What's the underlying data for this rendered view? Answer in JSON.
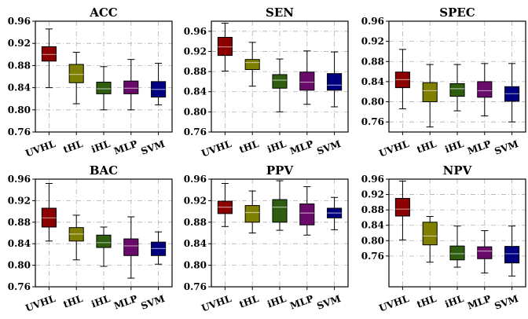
{
  "chart_data": [
    {
      "type": "box",
      "title": "ACC",
      "categories": [
        "UVHL",
        "tHL",
        "iHL",
        "MLP",
        "SVM"
      ],
      "ylim": [
        0.76,
        0.96
      ],
      "yticks": [
        "0.76",
        "0.80",
        "0.84",
        "0.88",
        "0.92",
        "0.96"
      ],
      "grid": true,
      "boxes": [
        {
          "name": "UVHL",
          "whislo": 0.84,
          "q1": 0.888,
          "med": 0.9,
          "q3": 0.914,
          "whishi": 0.946,
          "color": "#8b0000"
        },
        {
          "name": "tHL",
          "whislo": 0.811,
          "q1": 0.849,
          "med": 0.864,
          "q3": 0.882,
          "whishi": 0.904,
          "color": "#808000"
        },
        {
          "name": "iHL",
          "whislo": 0.8,
          "q1": 0.829,
          "med": 0.838,
          "q3": 0.85,
          "whishi": 0.878,
          "color": "#2e5e0e"
        },
        {
          "name": "MLP",
          "whislo": 0.8,
          "q1": 0.829,
          "med": 0.839,
          "q3": 0.852,
          "whishi": 0.891,
          "color": "#6a0a6a"
        },
        {
          "name": "SVM",
          "whislo": 0.809,
          "q1": 0.823,
          "med": 0.837,
          "q3": 0.851,
          "whishi": 0.884,
          "color": "#000080"
        }
      ]
    },
    {
      "type": "box",
      "title": "SEN",
      "categories": [
        "UVHL",
        "tHL",
        "iHL",
        "MLP",
        "SVM"
      ],
      "ylim": [
        0.76,
        0.98
      ],
      "yticks": [
        "0.76",
        "0.80",
        "0.84",
        "0.88",
        "0.92",
        "0.96"
      ],
      "grid": true,
      "boxes": [
        {
          "name": "UVHL",
          "whislo": 0.881,
          "q1": 0.912,
          "med": 0.929,
          "q3": 0.948,
          "whishi": 0.976,
          "color": "#8b0000"
        },
        {
          "name": "tHL",
          "whislo": 0.851,
          "q1": 0.884,
          "med": 0.898,
          "q3": 0.904,
          "whishi": 0.938,
          "color": "#808000"
        },
        {
          "name": "iHL",
          "whislo": 0.8,
          "q1": 0.847,
          "med": 0.863,
          "q3": 0.874,
          "whishi": 0.905,
          "color": "#2e5e0e"
        },
        {
          "name": "MLP",
          "whislo": 0.815,
          "q1": 0.843,
          "med": 0.859,
          "q3": 0.879,
          "whishi": 0.921,
          "color": "#6a0a6a"
        },
        {
          "name": "SVM",
          "whislo": 0.81,
          "q1": 0.843,
          "med": 0.853,
          "q3": 0.876,
          "whishi": 0.919,
          "color": "#000080"
        }
      ]
    },
    {
      "type": "box",
      "title": "SPEC",
      "categories": [
        "UVHL",
        "tHL",
        "iHL",
        "MLP",
        "SVM"
      ],
      "ylim": [
        0.74,
        0.96
      ],
      "yticks": [
        "0.76",
        "0.80",
        "0.84",
        "0.88",
        "0.92",
        "0.96"
      ],
      "grid": true,
      "boxes": [
        {
          "name": "UVHL",
          "whislo": 0.786,
          "q1": 0.828,
          "med": 0.844,
          "q3": 0.859,
          "whishi": 0.904,
          "color": "#8b0000"
        },
        {
          "name": "tHL",
          "whislo": 0.75,
          "q1": 0.8,
          "med": 0.822,
          "q3": 0.838,
          "whishi": 0.874,
          "color": "#808000"
        },
        {
          "name": "iHL",
          "whislo": 0.782,
          "q1": 0.811,
          "med": 0.826,
          "q3": 0.836,
          "whishi": 0.874,
          "color": "#2e5e0e"
        },
        {
          "name": "MLP",
          "whislo": 0.772,
          "q1": 0.809,
          "med": 0.822,
          "q3": 0.84,
          "whishi": 0.876,
          "color": "#6a0a6a"
        },
        {
          "name": "SVM",
          "whislo": 0.76,
          "q1": 0.801,
          "med": 0.816,
          "q3": 0.83,
          "whishi": 0.876,
          "color": "#000080"
        }
      ]
    },
    {
      "type": "box",
      "title": "BAC",
      "categories": [
        "UVHL",
        "tHL",
        "iHL",
        "MLP",
        "SVM"
      ],
      "ylim": [
        0.76,
        0.96
      ],
      "yticks": [
        "0.76",
        "0.80",
        "0.84",
        "0.88",
        "0.92",
        "0.96"
      ],
      "grid": true,
      "boxes": [
        {
          "name": "UVHL",
          "whislo": 0.845,
          "q1": 0.871,
          "med": 0.888,
          "q3": 0.906,
          "whishi": 0.952,
          "color": "#8b0000"
        },
        {
          "name": "tHL",
          "whislo": 0.81,
          "q1": 0.845,
          "med": 0.858,
          "q3": 0.87,
          "whishi": 0.893,
          "color": "#808000"
        },
        {
          "name": "iHL",
          "whislo": 0.798,
          "q1": 0.833,
          "med": 0.842,
          "q3": 0.856,
          "whishi": 0.871,
          "color": "#2e5e0e"
        },
        {
          "name": "MLP",
          "whislo": 0.776,
          "q1": 0.818,
          "med": 0.836,
          "q3": 0.849,
          "whishi": 0.89,
          "color": "#6a0a6a"
        },
        {
          "name": "SVM",
          "whislo": 0.802,
          "q1": 0.818,
          "med": 0.831,
          "q3": 0.843,
          "whishi": 0.862,
          "color": "#000080"
        }
      ]
    },
    {
      "type": "box",
      "title": "PPV",
      "categories": [
        "UVHL",
        "tHL",
        "iHL",
        "MLP",
        "SVM"
      ],
      "ylim": [
        0.76,
        0.96
      ],
      "yticks": [
        "0.76",
        "0.80",
        "0.84",
        "0.88",
        "0.92",
        "0.96"
      ],
      "grid": true,
      "boxes": [
        {
          "name": "UVHL",
          "whislo": 0.872,
          "q1": 0.896,
          "med": 0.908,
          "q3": 0.919,
          "whishi": 0.952,
          "color": "#8b0000"
        },
        {
          "name": "tHL",
          "whislo": 0.86,
          "q1": 0.88,
          "med": 0.898,
          "q3": 0.911,
          "whishi": 0.938,
          "color": "#808000"
        },
        {
          "name": "iHL",
          "whislo": 0.865,
          "q1": 0.88,
          "med": 0.908,
          "q3": 0.922,
          "whishi": 0.957,
          "color": "#2e5e0e"
        },
        {
          "name": "MLP",
          "whislo": 0.856,
          "q1": 0.875,
          "med": 0.897,
          "q3": 0.914,
          "whishi": 0.946,
          "color": "#6a0a6a"
        },
        {
          "name": "SVM",
          "whislo": 0.866,
          "q1": 0.888,
          "med": 0.897,
          "q3": 0.906,
          "whishi": 0.926,
          "color": "#000080"
        }
      ]
    },
    {
      "type": "box",
      "title": "NPV",
      "categories": [
        "UVHL",
        "tHL",
        "iHL",
        "MLP",
        "SVM"
      ],
      "ylim": [
        0.68,
        0.96
      ],
      "yticks": [
        "0.76",
        "0.80",
        "0.84",
        "0.88",
        "0.92",
        "0.96"
      ],
      "grid": true,
      "boxes": [
        {
          "name": "UVHL",
          "whislo": 0.802,
          "q1": 0.864,
          "med": 0.882,
          "q3": 0.91,
          "whishi": 0.955,
          "color": "#8b0000"
        },
        {
          "name": "tHL",
          "whislo": 0.744,
          "q1": 0.789,
          "med": 0.812,
          "q3": 0.848,
          "whishi": 0.863,
          "color": "#808000"
        },
        {
          "name": "iHL",
          "whislo": 0.731,
          "q1": 0.75,
          "med": 0.766,
          "q3": 0.786,
          "whishi": 0.838,
          "color": "#2e5e0e"
        },
        {
          "name": "MLP",
          "whislo": 0.716,
          "q1": 0.753,
          "med": 0.773,
          "q3": 0.784,
          "whishi": 0.826,
          "color": "#6a0a6a"
        },
        {
          "name": "SVM",
          "whislo": 0.708,
          "q1": 0.742,
          "med": 0.766,
          "q3": 0.785,
          "whishi": 0.838,
          "color": "#000080"
        }
      ]
    }
  ]
}
